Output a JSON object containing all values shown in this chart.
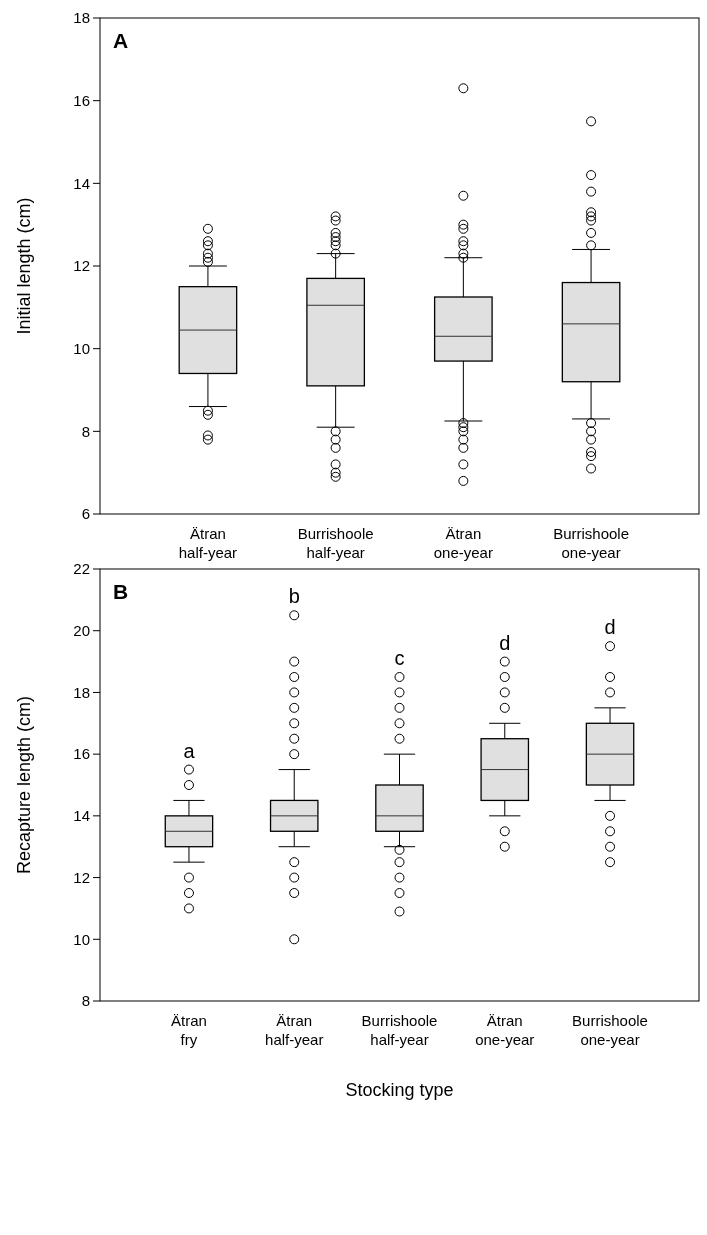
{
  "chart_data": [
    {
      "type": "box",
      "title": "A",
      "ylabel": "Initial length (cm)",
      "categories": [
        "Ätran\nhalf-year",
        "Burrishoole\nhalf-year",
        "Ätran\none-year",
        "Burrishoole\none-year"
      ],
      "ylim": [
        6,
        18
      ],
      "yticks": [
        6,
        8,
        10,
        12,
        14,
        16,
        18
      ],
      "color": "#e0e0e0",
      "grid": false,
      "boxes": [
        {
          "low": 8.6,
          "q1": 9.4,
          "median": 10.45,
          "q3": 11.5,
          "high": 12.0,
          "outliers": [
            12.1,
            12.2,
            12.3,
            12.5,
            12.6,
            12.9,
            8.5,
            8.4,
            7.9,
            7.8
          ]
        },
        {
          "low": 8.1,
          "q1": 9.1,
          "median": 11.05,
          "q3": 11.7,
          "high": 12.3,
          "outliers": [
            12.3,
            12.5,
            12.6,
            12.7,
            12.8,
            13.1,
            13.2,
            8.0,
            7.8,
            7.6,
            7.2,
            7.0,
            6.9
          ]
        },
        {
          "low": 8.25,
          "q1": 9.7,
          "median": 10.3,
          "q3": 11.25,
          "high": 12.2,
          "outliers": [
            12.2,
            12.3,
            12.5,
            12.6,
            12.9,
            13.0,
            13.7,
            16.3,
            8.2,
            8.1,
            8.0,
            7.8,
            7.6,
            7.2,
            6.8
          ]
        },
        {
          "low": 8.3,
          "q1": 9.2,
          "median": 10.6,
          "q3": 11.6,
          "high": 12.4,
          "outliers": [
            12.5,
            12.8,
            13.1,
            13.2,
            13.3,
            13.8,
            14.2,
            15.5,
            8.2,
            8.0,
            7.8,
            7.5,
            7.4,
            7.1
          ]
        }
      ]
    },
    {
      "type": "box",
      "title": "B",
      "ylabel": "Recapture length (cm)",
      "xlabel": "Stocking type",
      "categories": [
        "Ätran\nfry",
        "Ätran\nhalf-year",
        "Burrishoole\nhalf-year",
        "Ätran\none-year",
        "Burrishoole\none-year"
      ],
      "ylim": [
        8,
        22
      ],
      "yticks": [
        8,
        10,
        12,
        14,
        16,
        18,
        20,
        22
      ],
      "color": "#e0e0e0",
      "grid": false,
      "boxes": [
        {
          "low": 12.5,
          "q1": 13,
          "median": 13.5,
          "q3": 14,
          "high": 14.5,
          "outliers": [
            15,
            15.5,
            12,
            11.5,
            11
          ]
        },
        {
          "low": 13,
          "q1": 13.5,
          "median": 14,
          "q3": 14.5,
          "high": 15.5,
          "outliers": [
            16,
            16.5,
            17,
            17.5,
            18,
            18.5,
            19,
            20.5,
            12.5,
            12,
            11.5,
            10
          ]
        },
        {
          "low": 13,
          "q1": 13.5,
          "median": 14,
          "q3": 15,
          "high": 16,
          "outliers": [
            16.5,
            17,
            17.5,
            18,
            18.5,
            12.9,
            12.5,
            12,
            11.5,
            10.9
          ]
        },
        {
          "low": 14,
          "q1": 14.5,
          "median": 15.5,
          "q3": 16.5,
          "high": 17,
          "outliers": [
            17.5,
            18,
            18.5,
            19,
            13.5,
            13
          ]
        },
        {
          "low": 14.5,
          "q1": 15,
          "median": 16,
          "q3": 17,
          "high": 17.5,
          "outliers": [
            18,
            18.5,
            19.5,
            14,
            13.5,
            13,
            12.5
          ]
        }
      ],
      "annotations": [
        "a",
        "b",
        "c",
        "d",
        "d"
      ]
    }
  ]
}
